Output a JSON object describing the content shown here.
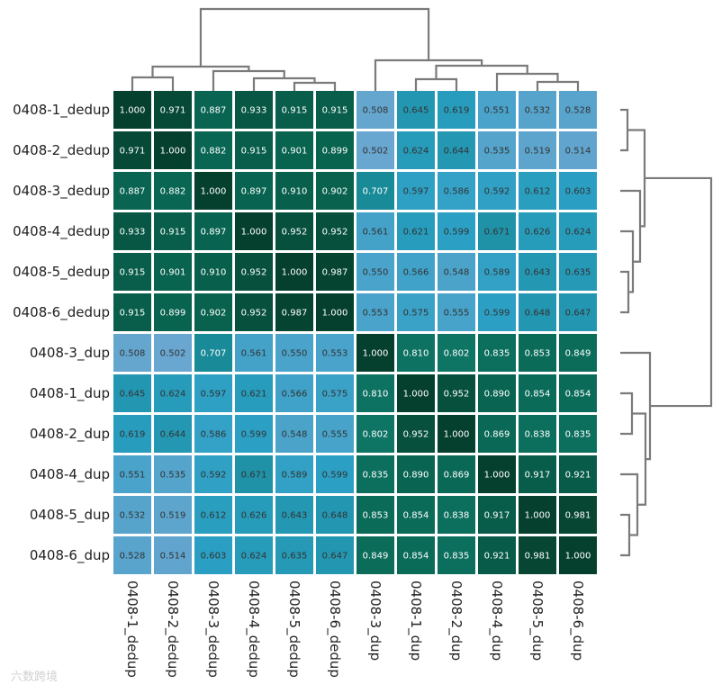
{
  "chart_data": {
    "type": "heatmap",
    "title": "",
    "rows": [
      "0408-1_dedup",
      "0408-2_dedup",
      "0408-3_dedup",
      "0408-4_dedup",
      "0408-5_dedup",
      "0408-6_dedup",
      "0408-3_dup",
      "0408-1_dup",
      "0408-2_dup",
      "0408-4_dup",
      "0408-5_dup",
      "0408-6_dup"
    ],
    "columns": [
      "0408-1_dedup",
      "0408-2_dedup",
      "0408-3_dedup",
      "0408-4_dedup",
      "0408-5_dedup",
      "0408-6_dedup",
      "0408-3_dup",
      "0408-1_dup",
      "0408-2_dup",
      "0408-4_dup",
      "0408-5_dup",
      "0408-6_dup"
    ],
    "values": [
      [
        "1.000",
        "0.971",
        "0.887",
        "0.933",
        "0.915",
        "0.915",
        "0.508",
        "0.645",
        "0.619",
        "0.551",
        "0.532",
        "0.528"
      ],
      [
        "0.971",
        "1.000",
        "0.882",
        "0.915",
        "0.901",
        "0.899",
        "0.502",
        "0.624",
        "0.644",
        "0.535",
        "0.519",
        "0.514"
      ],
      [
        "0.887",
        "0.882",
        "1.000",
        "0.897",
        "0.910",
        "0.902",
        "0.707",
        "0.597",
        "0.586",
        "0.592",
        "0.612",
        "0.603"
      ],
      [
        "0.933",
        "0.915",
        "0.897",
        "1.000",
        "0.952",
        "0.952",
        "0.561",
        "0.621",
        "0.599",
        "0.671",
        "0.626",
        "0.624"
      ],
      [
        "0.915",
        "0.901",
        "0.910",
        "0.952",
        "1.000",
        "0.987",
        "0.550",
        "0.566",
        "0.548",
        "0.589",
        "0.643",
        "0.635"
      ],
      [
        "0.915",
        "0.899",
        "0.902",
        "0.952",
        "0.987",
        "1.000",
        "0.553",
        "0.575",
        "0.555",
        "0.599",
        "0.648",
        "0.647"
      ],
      [
        "0.508",
        "0.502",
        "0.707",
        "0.561",
        "0.550",
        "0.553",
        "1.000",
        "0.810",
        "0.802",
        "0.835",
        "0.853",
        "0.849"
      ],
      [
        "0.645",
        "0.624",
        "0.597",
        "0.621",
        "0.566",
        "0.575",
        "0.810",
        "1.000",
        "0.952",
        "0.890",
        "0.854",
        "0.854"
      ],
      [
        "0.619",
        "0.644",
        "0.586",
        "0.599",
        "0.548",
        "0.555",
        "0.802",
        "0.952",
        "1.000",
        "0.869",
        "0.838",
        "0.835"
      ],
      [
        "0.551",
        "0.535",
        "0.592",
        "0.671",
        "0.589",
        "0.599",
        "0.835",
        "0.890",
        "0.869",
        "1.000",
        "0.917",
        "0.921"
      ],
      [
        "0.532",
        "0.519",
        "0.612",
        "0.626",
        "0.643",
        "0.648",
        "0.853",
        "0.854",
        "0.838",
        "0.917",
        "1.000",
        "0.981"
      ],
      [
        "0.528",
        "0.514",
        "0.603",
        "0.624",
        "0.635",
        "0.647",
        "0.849",
        "0.854",
        "0.835",
        "0.921",
        "0.981",
        "1.000"
      ]
    ],
    "value_range": [
      0.5,
      1.0
    ],
    "color_scale": [
      "#6aa6d0",
      "#2ba0c4",
      "#1a8c9c",
      "#0e7464",
      "#08634f",
      "#053f2d"
    ],
    "dendrogram": "hierarchical clustering on rows and columns",
    "legend": "none"
  },
  "watermark": "六数跨境"
}
